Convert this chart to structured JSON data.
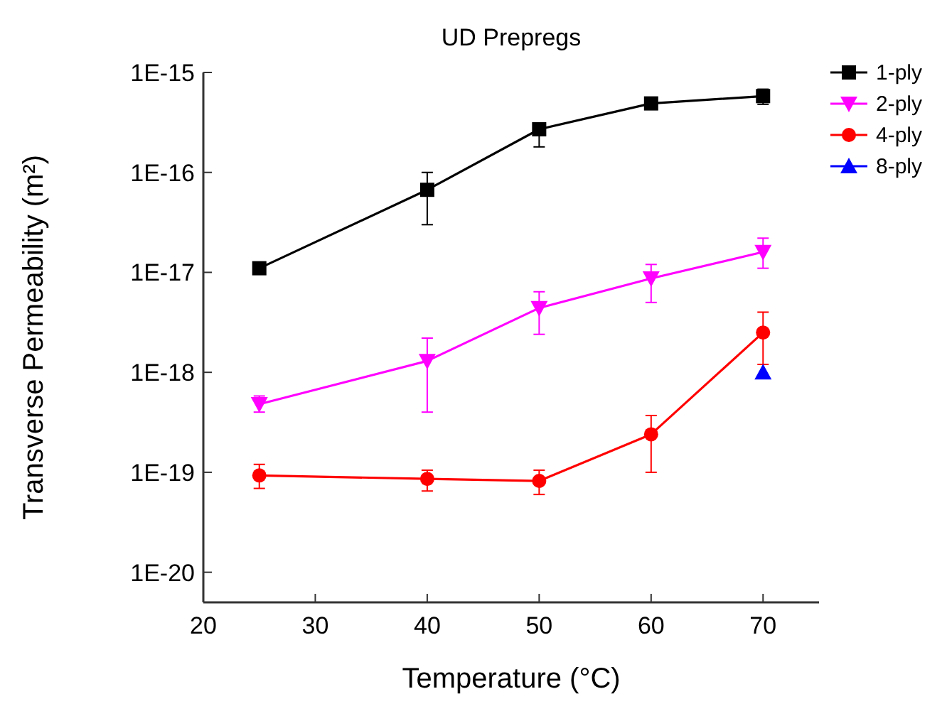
{
  "chart_data": {
    "type": "line",
    "title": "UD Prepregs",
    "xlabel": "Temperature (°C)",
    "ylabel": "Transverse Permeability (m²)",
    "x": [
      25,
      40,
      50,
      60,
      70
    ],
    "series": [
      {
        "name": "1-ply",
        "color": "#000000",
        "marker": "square",
        "values": [
          1.1e-17,
          6.7e-17,
          2.7e-16,
          4.9e-16,
          5.8e-16
        ],
        "errors": [
          null,
          [
            3e-17,
            1e-16
          ],
          [
            1.8e-16,
            2.7e-16
          ],
          null,
          [
            4.8e-16,
            6.8e-16
          ]
        ]
      },
      {
        "name": "2-ply",
        "color": "#ff00ff",
        "marker": "triangle-down",
        "values": [
          4.8e-19,
          1.3e-18,
          4.4e-18,
          8.7e-18,
          1.6e-17
        ],
        "errors": [
          [
            4e-19,
            5.8e-19
          ],
          [
            4e-19,
            2.2e-18
          ],
          [
            2.4e-18,
            6.4e-18
          ],
          [
            5e-18,
            1.2e-17
          ],
          [
            1.1e-17,
            2.2e-17
          ]
        ]
      },
      {
        "name": "4-ply",
        "color": "#ff0000",
        "marker": "circle",
        "values": [
          9.3e-20,
          8.6e-20,
          8.2e-20,
          2.4e-19,
          2.5e-18
        ],
        "errors": [
          [
            6.9e-20,
            1.2e-19
          ],
          [
            6.5e-20,
            1.05e-19
          ],
          [
            6e-20,
            1.05e-19
          ],
          [
            1e-19,
            3.7e-19
          ],
          [
            1.2e-18,
            4e-18
          ]
        ]
      },
      {
        "name": "8-ply",
        "color": "#0000ff",
        "marker": "triangle",
        "values": [
          null,
          null,
          null,
          null,
          1e-18
        ]
      }
    ],
    "log": "y",
    "xlim": [
      20,
      75
    ],
    "xticks": [
      20,
      30,
      40,
      50,
      60,
      70
    ],
    "ylim": [
      5e-21,
      1e-15
    ],
    "yticks": [
      {
        "value": 1e-20,
        "label": "1E-20"
      },
      {
        "value": 1e-19,
        "label": "1E-19"
      },
      {
        "value": 1e-18,
        "label": "1E-18"
      },
      {
        "value": 1e-17,
        "label": "1E-17"
      },
      {
        "value": 1e-16,
        "label": "1E-16"
      },
      {
        "value": 1e-15,
        "label": "1E-15"
      }
    ],
    "legend": "top right",
    "grid": false
  }
}
